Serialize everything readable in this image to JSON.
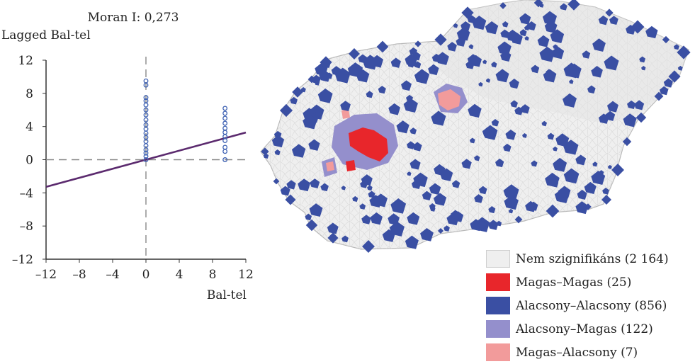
{
  "chart_data": {
    "type": "scatter",
    "title": "Moran I: 0,273",
    "xlabel": "Bal-tel",
    "ylabel": "Lagged Bal-tel",
    "xlim": [
      -12,
      12
    ],
    "ylim": [
      -12,
      12
    ],
    "x_ticks": [
      "–12",
      "–8",
      "–4",
      "0",
      "4",
      "8",
      "12"
    ],
    "y_ticks": [
      "12",
      "8",
      "4",
      "0",
      "–4",
      "–8",
      "–12"
    ],
    "regression_slope": 0.273,
    "series": [
      {
        "points": [
          [
            0,
            0
          ],
          [
            0,
            0.4
          ],
          [
            0,
            0.8
          ],
          [
            0,
            1.2
          ],
          [
            0,
            1.7
          ],
          [
            0,
            2.2
          ],
          [
            0,
            2.7
          ],
          [
            0,
            3.2
          ],
          [
            0,
            3.7
          ],
          [
            0,
            4.2
          ],
          [
            0,
            4.8
          ],
          [
            0,
            5.4
          ],
          [
            0,
            6.0
          ],
          [
            0,
            6.6
          ],
          [
            0,
            7.1
          ],
          [
            0,
            7.5
          ],
          [
            0,
            9.0
          ],
          [
            0,
            9.5
          ],
          [
            9.5,
            0
          ],
          [
            9.5,
            1.0
          ],
          [
            9.5,
            1.5
          ],
          [
            9.5,
            2.3
          ],
          [
            9.5,
            2.8
          ],
          [
            9.5,
            3.3
          ],
          [
            9.5,
            3.8
          ],
          [
            9.5,
            4.4
          ],
          [
            9.5,
            5.0
          ],
          [
            9.5,
            5.6
          ],
          [
            9.5,
            6.2
          ]
        ]
      }
    ],
    "grid": false
  },
  "map": {
    "colors": {
      "not_significant": "#efefef",
      "high_high": "#e8262b",
      "low_low": "#3a4fa3",
      "low_high": "#948fcc",
      "high_low": "#f29b9b"
    }
  },
  "legend": {
    "items": [
      {
        "label": "Nem szignifikáns (2 164)",
        "color": "#efefef"
      },
      {
        "label": "Magas–Magas (25)",
        "color": "#e8262b"
      },
      {
        "label": "Alacsony–Alacsony (856)",
        "color": "#3a4fa3"
      },
      {
        "label": "Alacsony–Magas (122)",
        "color": "#948fcc"
      },
      {
        "label": "Magas–Alacsony (7)",
        "color": "#f29b9b"
      }
    ]
  }
}
